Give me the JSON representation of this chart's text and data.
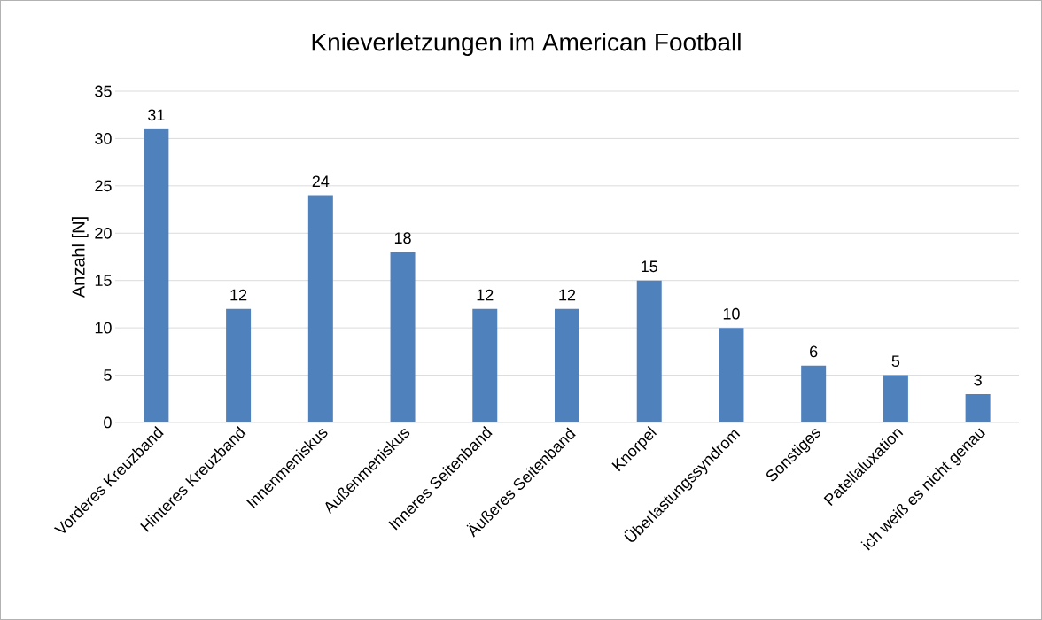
{
  "chart_data": {
    "type": "bar",
    "title": "Knieverletzungen im American Football",
    "ylabel": "Anzahl [N]",
    "categories": [
      "Vorderes Kreuzband",
      "Hinteres Kreuzband",
      "Innenmeniskus",
      "Außenmeniskus",
      "Inneres Seitenband",
      "Äußeres Seitenband",
      "Knorpel",
      "Überlastungssyndrom",
      "Sonstiges",
      "Patellaluxation",
      "ich weiß es nicht genau"
    ],
    "values": [
      31,
      12,
      24,
      18,
      12,
      12,
      15,
      10,
      6,
      5,
      3
    ],
    "color": "#4f81bd",
    "ylim": [
      0,
      35
    ],
    "yticks": [
      0,
      5,
      10,
      15,
      20,
      25,
      30,
      35
    ],
    "grid": "y",
    "data_labels": true
  }
}
